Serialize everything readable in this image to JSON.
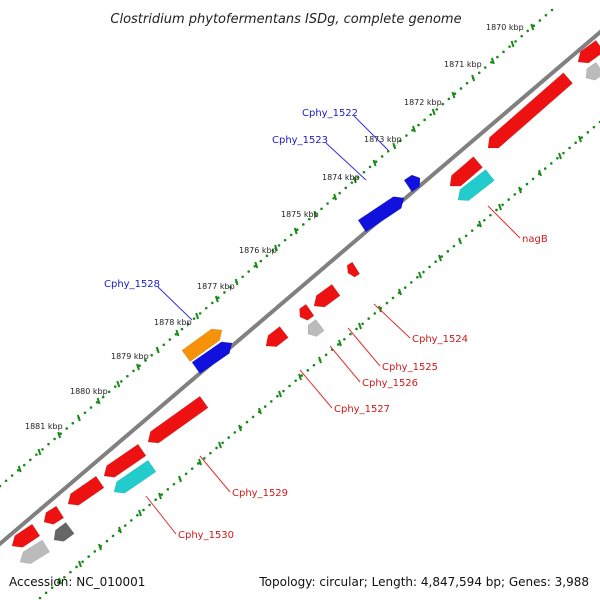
{
  "title": "Clostridium phytofermentans ISDg, complete genome",
  "footer": {
    "accession": "Accession: NC_010001",
    "summary": "Topology: circular; Length: 4,847,594 bp; Genes: 3,988"
  },
  "ruler_labels": [
    "1870 kbp",
    "1871 kbp",
    "1872 kbp",
    "1873 kbp",
    "1874 kbp",
    "1875 kbp",
    "1876 kbp",
    "1877 kbp",
    "1878 kbp",
    "1879 kbp",
    "1880 kbp",
    "1881 kbp"
  ],
  "gene_labels": {
    "forward": [
      "Cphy_1522",
      "Cphy_1523",
      "Cphy_1528"
    ],
    "reverse": [
      "nagB",
      "Cphy_1524",
      "Cphy_1525",
      "Cphy_1526",
      "Cphy_1527",
      "Cphy_1529",
      "Cphy_1530"
    ]
  },
  "colors": {
    "backbone": "#808080",
    "tick": "#1a8a1a",
    "forward_label": "#1a1acc",
    "reverse_label": "#cc1a1a",
    "red_gene": "#ee1111",
    "blue_gene": "#1111dd",
    "orange_gene": "#f5920a",
    "cyan_gene": "#22cccc",
    "gray_gene": "#bbbbbb",
    "darkgray_gene": "#666666"
  }
}
